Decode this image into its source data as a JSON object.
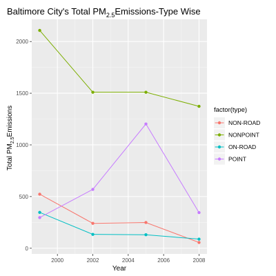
{
  "chart_data": {
    "type": "line",
    "title": {
      "prefix": "Baltimore City's Total PM",
      "subscript": "2.5",
      "suffix": "Emissions-Type Wise"
    },
    "xlabel": "Year",
    "ylabel": {
      "prefix": "Total PM",
      "subscript": "2.5",
      "suffix": "Emissions"
    },
    "x": [
      1999,
      2002,
      2005,
      2008
    ],
    "xlim": [
      1998.55,
      2008.45
    ],
    "ylim": [
      -55,
      2215
    ],
    "x_ticks": [
      2000,
      2002,
      2004,
      2006,
      2008
    ],
    "x_tick_labels": [
      "2000",
      "2002",
      "2004",
      "2006",
      "2008"
    ],
    "y_ticks": [
      0,
      500,
      1000,
      1500,
      2000
    ],
    "y_tick_labels": [
      "0",
      "500",
      "1000",
      "1500",
      "2000"
    ],
    "grid": true,
    "legend": {
      "title": "factor(type)",
      "placement": "right"
    },
    "series": [
      {
        "name": "NON-ROAD",
        "color": "#F8766D",
        "values": [
          522.9,
          240.8,
          248.9,
          55.8
        ]
      },
      {
        "name": "NONPOINT",
        "color": "#7CAE00",
        "values": [
          2107.6,
          1509.5,
          1509.5,
          1373.2
        ]
      },
      {
        "name": "ON-ROAD",
        "color": "#00BFC4",
        "values": [
          346.8,
          134.3,
          130.4,
          88.3
        ]
      },
      {
        "name": "POINT",
        "color": "#C77CFF",
        "values": [
          296.8,
          569.3,
          1202.5,
          344.98
        ]
      }
    ]
  }
}
